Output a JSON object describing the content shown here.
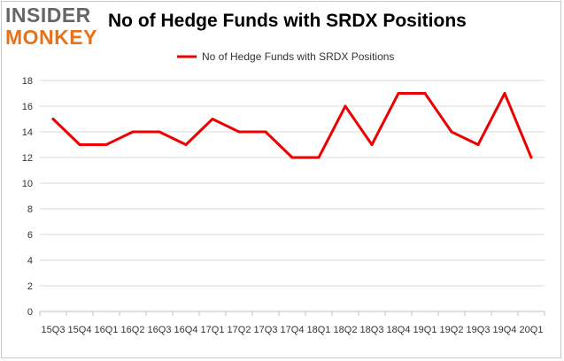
{
  "logo": {
    "line1": "INSIDER",
    "line2": "MONKEY"
  },
  "chart_data": {
    "type": "line",
    "title": "No of Hedge Funds with SRDX Positions",
    "xlabel": "",
    "ylabel": "",
    "categories": [
      "2015Q3",
      "2015Q4",
      "2016Q1",
      "2016Q2",
      "2016Q3",
      "2016Q4",
      "2017Q1",
      "2017Q2",
      "2017Q3",
      "2017Q4",
      "2018Q1",
      "2018Q2",
      "2018Q3",
      "2018Q4",
      "2019Q1",
      "2019Q2",
      "2019Q3",
      "2019Q4",
      "2020Q1"
    ],
    "tick_labels": [
      "15Q3",
      "15Q4",
      "16Q1",
      "16Q2",
      "16Q3",
      "16Q4",
      "17Q1",
      "17Q2",
      "17Q3",
      "17Q4",
      "18Q1",
      "18Q2",
      "18Q3",
      "18Q4",
      "19Q1",
      "19Q2",
      "19Q3",
      "19Q4",
      "20Q1"
    ],
    "series": [
      {
        "name": "No of Hedge Funds with SRDX Positions",
        "color": "#ee0000",
        "values": [
          15,
          13,
          13,
          14,
          14,
          13,
          15,
          14,
          14,
          12,
          12,
          16,
          13,
          17,
          17,
          14,
          13,
          17,
          12
        ]
      }
    ],
    "ylim": [
      0,
      18
    ],
    "yticks": [
      0,
      2,
      4,
      6,
      8,
      10,
      12,
      14,
      16,
      18
    ],
    "grid": true,
    "legend": "top-center",
    "colors": {
      "grid": "#d9d9d9",
      "axis": "#bfbfbf",
      "tick_text": "#333333",
      "logo_gray": "#666666",
      "logo_orange": "#e8721c"
    }
  }
}
